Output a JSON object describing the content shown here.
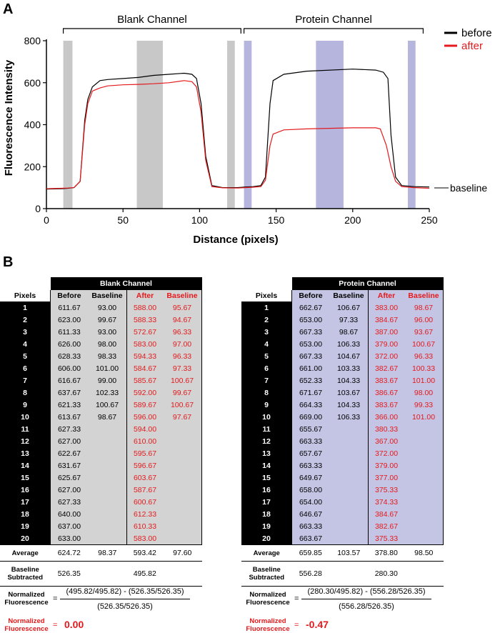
{
  "panel_a": "A",
  "panel_b": "B",
  "chart_data": {
    "type": "line",
    "ylabel": "Fluorescence Intensity",
    "xlabel": "Distance (pixels)",
    "xlim": [
      0,
      250
    ],
    "ylim": [
      0,
      800
    ],
    "x_ticks": [
      "0",
      "50",
      "100",
      "150",
      "200",
      "250"
    ],
    "y_ticks": [
      "0",
      "200",
      "400",
      "600",
      "800"
    ],
    "bracket_labels": [
      "Blank Channel",
      "Protein Channel"
    ],
    "baseline_label": "baseline",
    "legend": [
      {
        "name": "before",
        "color": "#000000"
      },
      {
        "name": "after",
        "color": "#e41a1c"
      }
    ],
    "shaded_regions": [
      {
        "x0": 11,
        "x1": 17,
        "color": "#c8c8c8"
      },
      {
        "x0": 59,
        "x1": 76,
        "color": "#c8c8c8"
      },
      {
        "x0": 118,
        "x1": 123,
        "color": "#c8c8c8"
      },
      {
        "x0": 129,
        "x1": 134,
        "color": "#b5b5dd"
      },
      {
        "x0": 176,
        "x1": 194,
        "color": "#b5b5dd"
      },
      {
        "x0": 236,
        "x1": 241,
        "color": "#b5b5dd"
      }
    ],
    "series": [
      {
        "name": "before",
        "color": "#000000",
        "x": [
          0,
          10,
          14,
          18,
          22,
          25,
          27,
          30,
          35,
          40,
          50,
          60,
          70,
          80,
          90,
          95,
          98,
          101,
          104,
          108,
          115,
          125,
          130,
          135,
          140,
          143,
          146,
          148,
          155,
          170,
          200,
          215,
          220,
          223,
          225,
          228,
          232,
          240,
          250
        ],
        "y": [
          93,
          95,
          97,
          100,
          130,
          420,
          520,
          580,
          610,
          615,
          620,
          625,
          635,
          640,
          645,
          640,
          620,
          500,
          250,
          110,
          100,
          100,
          103,
          105,
          110,
          150,
          500,
          610,
          640,
          655,
          665,
          660,
          650,
          620,
          350,
          150,
          110,
          105,
          103
        ]
      },
      {
        "name": "after",
        "color": "#e41a1c",
        "x": [
          0,
          10,
          14,
          18,
          22,
          25,
          27,
          30,
          35,
          40,
          50,
          60,
          70,
          80,
          90,
          95,
          98,
          101,
          104,
          108,
          115,
          125,
          130,
          135,
          140,
          143,
          146,
          148,
          155,
          170,
          200,
          215,
          218,
          220,
          222,
          225,
          228,
          232,
          240,
          250
        ],
        "y": [
          95,
          97,
          98,
          100,
          130,
          400,
          500,
          560,
          575,
          585,
          590,
          592,
          595,
          600,
          610,
          605,
          580,
          460,
          230,
          105,
          99,
          98,
          100,
          102,
          105,
          135,
          300,
          355,
          375,
          380,
          385,
          385,
          380,
          340,
          300,
          200,
          130,
          105,
          100,
          97
        ]
      }
    ]
  },
  "tables": [
    {
      "title": "Blank Channel",
      "pixels_label": "Pixels",
      "headers": [
        "Before",
        "Baseline",
        "After",
        "Baseline"
      ],
      "rows": [
        [
          "1",
          "611.67",
          "93.00",
          "588.00",
          "95.67"
        ],
        [
          "2",
          "623.00",
          "99.67",
          "588.33",
          "94.67"
        ],
        [
          "3",
          "611.33",
          "93.00",
          "572.67",
          "96.33"
        ],
        [
          "4",
          "626.00",
          "98.00",
          "583.00",
          "97.00"
        ],
        [
          "5",
          "628.33",
          "98.33",
          "594.33",
          "96.33"
        ],
        [
          "6",
          "606.00",
          "101.00",
          "584.67",
          "97.33"
        ],
        [
          "7",
          "616.67",
          "99.00",
          "585.67",
          "100.67"
        ],
        [
          "8",
          "637.67",
          "102.33",
          "592.00",
          "99.67"
        ],
        [
          "9",
          "621.33",
          "100.67",
          "589.67",
          "100.67"
        ],
        [
          "10",
          "613.67",
          "98.67",
          "596.00",
          "97.67"
        ],
        [
          "11",
          "627.33",
          "",
          "594.00",
          ""
        ],
        [
          "12",
          "627.00",
          "",
          "610.00",
          ""
        ],
        [
          "13",
          "622.67",
          "",
          "595.67",
          ""
        ],
        [
          "14",
          "631.67",
          "",
          "596.67",
          ""
        ],
        [
          "15",
          "625.67",
          "",
          "603.67",
          ""
        ],
        [
          "16",
          "627.00",
          "",
          "587.67",
          ""
        ],
        [
          "17",
          "627.33",
          "",
          "600.67",
          ""
        ],
        [
          "18",
          "640.00",
          "",
          "612.33",
          ""
        ],
        [
          "19",
          "637.00",
          "",
          "610.33",
          ""
        ],
        [
          "20",
          "633.00",
          "",
          "583.00",
          ""
        ]
      ],
      "average_label": "Average",
      "average": [
        "624.72",
        "98.37",
        "593.42",
        "97.60"
      ],
      "baseline_subtracted_label_1": "Baseline",
      "baseline_subtracted_label_2": "Subtracted",
      "baseline_subtracted": [
        "526.35",
        "495.82"
      ],
      "norm_label_1": "Normalized",
      "norm_label_2": "Fluorescence",
      "norm_eq": "=",
      "norm_numerator": "(495.82/495.82) - (526.35/526.35)",
      "norm_denominator": "(526.35/526.35)",
      "norm_value": "0.00"
    },
    {
      "title": "Protein Channel",
      "pixels_label": "Pixels",
      "headers": [
        "Before",
        "Baseline",
        "After",
        "Baseline"
      ],
      "rows": [
        [
          "1",
          "662.67",
          "106.67",
          "383.00",
          "98.67"
        ],
        [
          "2",
          "653.00",
          "97.33",
          "384.67",
          "96.00"
        ],
        [
          "3",
          "667.33",
          "98.67",
          "387.00",
          "93.67"
        ],
        [
          "4",
          "653.00",
          "106.33",
          "379.00",
          "100.67"
        ],
        [
          "5",
          "667.33",
          "104.67",
          "372.00",
          "96.33"
        ],
        [
          "6",
          "661.00",
          "103.33",
          "382.67",
          "100.33"
        ],
        [
          "7",
          "652.33",
          "104.33",
          "383.67",
          "101.00"
        ],
        [
          "8",
          "671.67",
          "103.67",
          "386.67",
          "98.00"
        ],
        [
          "9",
          "664.33",
          "104.33",
          "383.67",
          "99.33"
        ],
        [
          "10",
          "669.00",
          "106.33",
          "366.00",
          "101.00"
        ],
        [
          "11",
          "655.67",
          "",
          "380.33",
          ""
        ],
        [
          "12",
          "663.33",
          "",
          "367.00",
          ""
        ],
        [
          "13",
          "657.67",
          "",
          "372.00",
          ""
        ],
        [
          "14",
          "663.33",
          "",
          "379.00",
          ""
        ],
        [
          "15",
          "649.67",
          "",
          "377.00",
          ""
        ],
        [
          "16",
          "658.00",
          "",
          "375.33",
          ""
        ],
        [
          "17",
          "654.00",
          "",
          "374.33",
          ""
        ],
        [
          "18",
          "646.67",
          "",
          "384.67",
          ""
        ],
        [
          "19",
          "663.33",
          "",
          "382.67",
          ""
        ],
        [
          "20",
          "663.67",
          "",
          "375.33",
          ""
        ]
      ],
      "average_label": "Average",
      "average": [
        "659.85",
        "103.57",
        "378.80",
        "98.50"
      ],
      "baseline_subtracted_label_1": "Baseline",
      "baseline_subtracted_label_2": "Subtracted",
      "baseline_subtracted": [
        "556.28",
        "280.30"
      ],
      "norm_label_1": "Normalized",
      "norm_label_2": "Fluorescence",
      "norm_eq": "=",
      "norm_numerator": "(280.30/495.82) - (556.28/526.35)",
      "norm_denominator": "(556.28/526.35)",
      "norm_value": "-0.47"
    }
  ]
}
